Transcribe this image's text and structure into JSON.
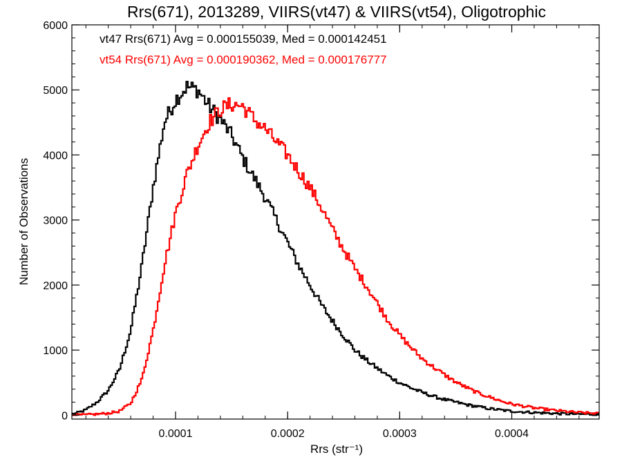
{
  "chart_data": {
    "type": "line",
    "title": "Rrs(671), 2013289, VIIRS(vt47) & VIIRS(vt54), Oligotrophic",
    "xlabel": "Rrs (str⁻¹)",
    "ylabel": "Number of Observations",
    "xlim": [
      7.5e-06,
      0.000478
    ],
    "ylim": [
      -60,
      6000
    ],
    "x_ticks": [
      0.0001,
      0.0002,
      0.0003,
      0.0004
    ],
    "x_tick_labels": [
      "0.0001",
      "0.0002",
      "0.0003",
      "0.0004"
    ],
    "y_ticks": [
      0,
      1000,
      2000,
      3000,
      4000,
      5000,
      6000
    ],
    "y_tick_labels": [
      "0",
      "1000",
      "2000",
      "3000",
      "4000",
      "5000",
      "6000"
    ],
    "step_style": "histogram",
    "bin_width": 1.5e-06,
    "annotations": [
      {
        "text": "vt47 Rrs(671) Avg = 0.000155039, Med = 0.000142451",
        "color": "#000000"
      },
      {
        "text": "vt54 Rrs(671) Avg = 0.000190362, Med = 0.000176777",
        "color": "#ff0000"
      }
    ],
    "series": [
      {
        "color": "#000000",
        "x": [
          1e-05,
          2e-05,
          3e-05,
          4e-05,
          5e-05,
          6e-05,
          7e-05,
          8e-05,
          9e-05,
          0.0001,
          0.00011,
          0.00012,
          0.00013,
          0.00014,
          0.00015,
          0.00016,
          0.00017,
          0.00018,
          0.00019,
          0.0002,
          0.00021,
          0.00022,
          0.00023,
          0.00024,
          0.00025,
          0.00026,
          0.00027,
          0.00028,
          0.00029,
          0.0003,
          0.00031,
          0.00032,
          0.00033,
          0.00034,
          0.00035,
          0.00036,
          0.00037,
          0.00038,
          0.00039,
          0.0004,
          0.00042,
          0.00044,
          0.00046,
          0.000478
        ],
        "y": [
          20,
          80,
          200,
          380,
          700,
          1300,
          2300,
          3500,
          4500,
          4850,
          5050,
          5000,
          4750,
          4550,
          4300,
          3950,
          3650,
          3350,
          3000,
          2650,
          2300,
          2000,
          1700,
          1450,
          1220,
          1000,
          850,
          720,
          600,
          500,
          420,
          350,
          290,
          240,
          200,
          160,
          130,
          100,
          80,
          60,
          40,
          25,
          15,
          10
        ]
      },
      {
        "color": "#ff0000",
        "x": [
          1e-05,
          2e-05,
          3e-05,
          4e-05,
          5e-05,
          6e-05,
          7e-05,
          8e-05,
          9e-05,
          0.0001,
          0.00011,
          0.00012,
          0.00013,
          0.00014,
          0.00015,
          0.00016,
          0.00017,
          0.00018,
          0.00019,
          0.0002,
          0.00021,
          0.00022,
          0.00023,
          0.00024,
          0.00025,
          0.00026,
          0.00027,
          0.00028,
          0.00029,
          0.0003,
          0.00031,
          0.00032,
          0.00033,
          0.00034,
          0.00035,
          0.00036,
          0.00037,
          0.00038,
          0.00039,
          0.0004,
          0.00042,
          0.00044,
          0.00046,
          0.000478
        ],
        "y": [
          0,
          5,
          15,
          30,
          60,
          180,
          550,
          1300,
          2300,
          3100,
          3700,
          4150,
          4500,
          4700,
          4780,
          4750,
          4550,
          4400,
          4200,
          4000,
          3750,
          3500,
          3200,
          2850,
          2550,
          2250,
          2000,
          1720,
          1450,
          1230,
          1040,
          870,
          740,
          620,
          510,
          420,
          340,
          280,
          220,
          170,
          110,
          70,
          40,
          25
        ]
      }
    ]
  }
}
